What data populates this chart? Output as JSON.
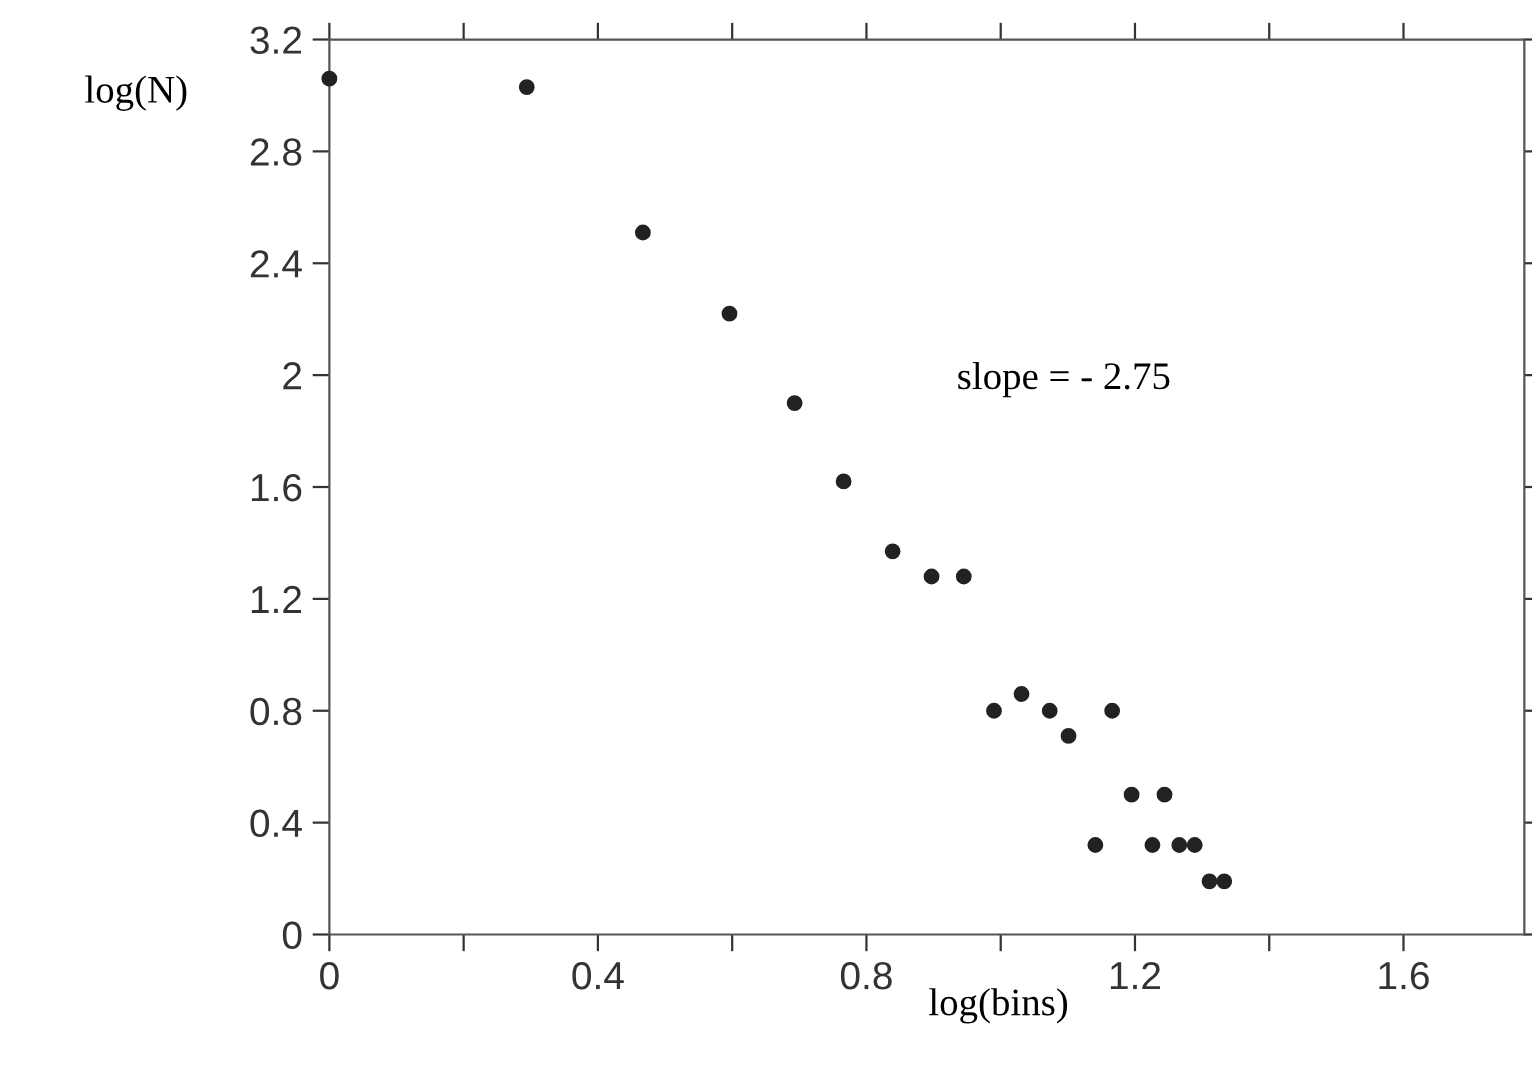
{
  "chart_data": {
    "type": "scatter",
    "xlabel": "log(bins)",
    "ylabel": "log(N)",
    "annotations": [
      "slope = - 2.75"
    ],
    "x": [
      0.0,
      0.294,
      0.467,
      0.596,
      0.693,
      0.766,
      0.839,
      0.897,
      0.945,
      0.99,
      1.031,
      1.073,
      1.101,
      1.166,
      1.195,
      1.244,
      1.141,
      1.226,
      1.266,
      1.289,
      1.311,
      1.333
    ],
    "values": [
      3.06,
      3.03,
      2.51,
      2.22,
      1.9,
      1.62,
      1.37,
      1.28,
      1.28,
      0.8,
      0.86,
      0.8,
      0.71,
      0.8,
      0.5,
      0.5,
      0.32,
      0.32,
      0.32,
      0.32,
      0.19,
      0.19
    ],
    "color": "#222222",
    "marker": "circle",
    "grid": false,
    "xlim": [
      0,
      1.78
    ],
    "ylim": [
      0,
      3.2
    ],
    "xticks": [
      0,
      {
        "value": 0.2,
        "label": null
      },
      0.4,
      {
        "value": 0.6,
        "label": null
      },
      0.8,
      {
        "value": 1.0,
        "label": null
      },
      1.2,
      {
        "value": 1.4,
        "label": null
      },
      1.6
    ],
    "yticks": [
      0,
      0.4,
      0.8,
      1.2,
      1.6,
      2,
      2.4,
      2.8,
      3.2
    ]
  }
}
